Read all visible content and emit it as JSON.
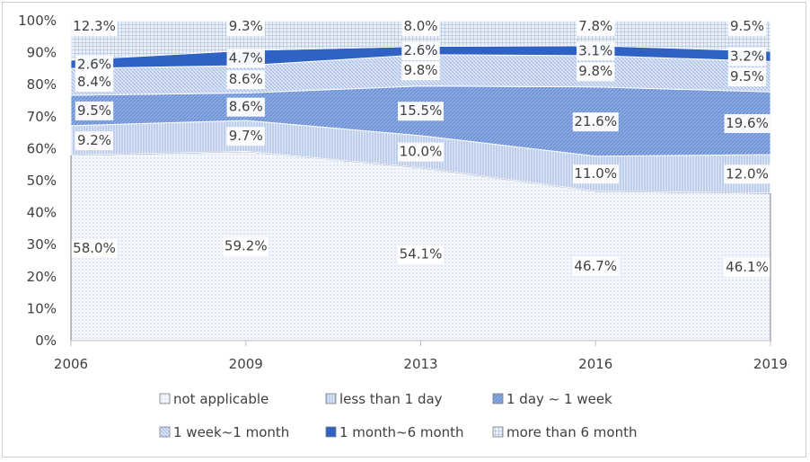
{
  "chart_data": {
    "type": "area",
    "stacked": true,
    "title": "",
    "xlabel": "",
    "ylabel": "",
    "x": [
      "2006",
      "2009",
      "2013",
      "2016",
      "2019"
    ],
    "ylim": [
      0,
      100
    ],
    "y_ticks": [
      "0%",
      "10%",
      "20%",
      "30%",
      "40%",
      "50%",
      "60%",
      "70%",
      "80%",
      "90%",
      "100%"
    ],
    "grid": false,
    "legend_position": "bottom",
    "series": [
      {
        "name": "not applicable",
        "values": [
          58.0,
          59.2,
          54.1,
          46.7,
          46.1
        ],
        "labels": [
          "58.0%",
          "59.2%",
          "54.1%",
          "46.7%",
          "46.1%"
        ],
        "color": "#e9eef9",
        "pattern": "dots"
      },
      {
        "name": "less than 1 day",
        "values": [
          9.2,
          9.7,
          10.0,
          11.0,
          12.0
        ],
        "labels": [
          "9.2%",
          "9.7%",
          "10.0%",
          "11.0%",
          "12.0%"
        ],
        "color": "#c9d7f2",
        "pattern": "vertical-lines"
      },
      {
        "name": "1 day ~ 1 week",
        "values": [
          9.5,
          8.6,
          15.5,
          21.6,
          19.6
        ],
        "labels": [
          "9.5%",
          "8.6%",
          "15.5%",
          "21.6%",
          "19.6%"
        ],
        "color": "#7e9fdc",
        "pattern": "diagonal-lines"
      },
      {
        "name": "1 week~1 month",
        "values": [
          8.4,
          8.6,
          9.8,
          9.8,
          9.5
        ],
        "labels": [
          "8.4%",
          "8.6%",
          "9.8%",
          "9.8%",
          "9.5%"
        ],
        "color": "#b3c6ec",
        "pattern": "diagonal-lines-light"
      },
      {
        "name": "1 month~6 month",
        "values": [
          2.6,
          4.7,
          2.6,
          3.1,
          3.2
        ],
        "labels": [
          "2.6%",
          "4.7%",
          "2.6%",
          "3.1%",
          "3.2%"
        ],
        "color": "#2f62c4",
        "pattern": "solid"
      },
      {
        "name": "more than 6 month",
        "values": [
          12.3,
          9.3,
          8.0,
          7.8,
          9.5
        ],
        "labels": [
          "12.3%",
          "9.3%",
          "8.0%",
          "7.8%",
          "9.5%"
        ],
        "color": "#d6e1f5",
        "pattern": "grid"
      }
    ]
  }
}
